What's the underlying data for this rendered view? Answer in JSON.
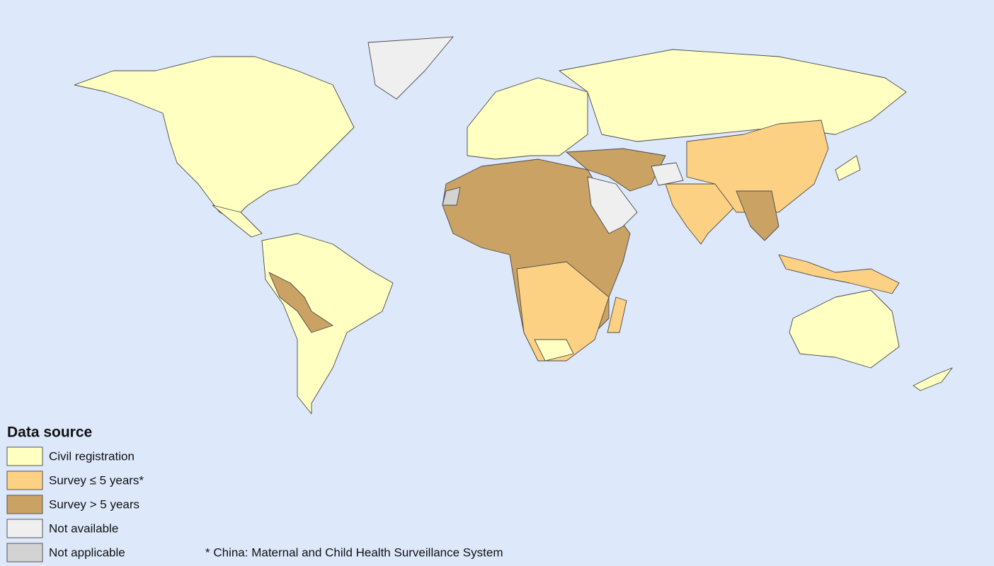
{
  "legend": {
    "title": "Data source",
    "items": [
      {
        "label": "Civil registration",
        "color": "#ffffc2"
      },
      {
        "label": "Survey ≤ 5 years*",
        "color": "#fdd184"
      },
      {
        "label": "Survey > 5 years",
        "color": "#c9a264"
      },
      {
        "label": "Not available",
        "color": "#efefef"
      },
      {
        "label": "Not applicable",
        "color": "#d3d3d3"
      }
    ]
  },
  "footnote": "* China: Maternal and Child Health Surveillance System"
}
